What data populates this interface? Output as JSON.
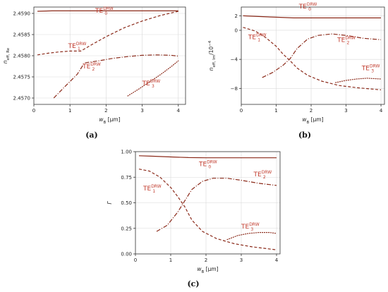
{
  "chart_data": [
    {
      "id": "a",
      "type": "line",
      "panel_label": "(a)",
      "xlabel": "w",
      "xlabel_sub": "B",
      "xlabel_unit": " [μm]",
      "ylabel": "n",
      "ylabel_sub": "eff, Re",
      "xlim": [
        0,
        4.2
      ],
      "ylim": [
        2.45685,
        2.45915
      ],
      "xticks": [
        0,
        1,
        2,
        3,
        4
      ],
      "xtick_labels": [
        "0",
        "1",
        "2",
        "3",
        "4"
      ],
      "yticks": [
        2.457,
        2.4575,
        2.458,
        2.4585,
        2.459
      ],
      "ytick_labels": [
        "2.4570",
        "2.4575",
        "2.4580",
        "2.4585",
        "2.4590"
      ],
      "series": [
        {
          "name": "TE0",
          "style": "solid",
          "x": [
            0.1,
            0.5,
            1.0,
            1.5,
            2.0,
            2.5,
            3.0,
            3.5,
            4.0
          ],
          "y": [
            2.45905,
            2.45906,
            2.45906,
            2.45906,
            2.45906,
            2.45906,
            2.45906,
            2.45906,
            2.45906
          ]
        },
        {
          "name": "TE1",
          "style": "dashed",
          "x": [
            0.1,
            0.4,
            0.7,
            1.0,
            1.3,
            1.6,
            2.0,
            2.5,
            3.0,
            3.5,
            4.0
          ],
          "y": [
            2.45802,
            2.45806,
            2.45809,
            2.45811,
            2.45811,
            2.45826,
            2.45845,
            2.45866,
            2.45882,
            2.45895,
            2.45905
          ]
        },
        {
          "name": "TE2",
          "style": "dashdot",
          "x": [
            0.55,
            0.8,
            1.0,
            1.2,
            1.4,
            1.8,
            2.2,
            2.6,
            3.0,
            3.4,
            3.8,
            4.0
          ],
          "y": [
            2.457,
            2.45722,
            2.45739,
            2.45756,
            2.45783,
            2.45788,
            2.45794,
            2.45798,
            2.45801,
            2.45802,
            2.45801,
            2.45799
          ]
        },
        {
          "name": "TE3",
          "style": "dotted",
          "x": [
            2.6,
            2.9,
            3.2,
            3.5,
            3.8,
            4.0
          ],
          "y": [
            2.45705,
            2.45721,
            2.45738,
            2.45755,
            2.45774,
            2.45788
          ]
        }
      ],
      "annotations": [
        {
          "base": "TE",
          "sub": "0",
          "sup": "DRW",
          "x": 1.7,
          "y": 2.45902
        },
        {
          "base": "TE",
          "sub": "1",
          "sup": "DRW",
          "x": 0.95,
          "y": 2.45818
        },
        {
          "base": "TE",
          "sub": "2",
          "sup": "DRW",
          "x": 1.35,
          "y": 2.4577
        },
        {
          "base": "TE",
          "sub": "3",
          "sup": "DRW",
          "x": 3.0,
          "y": 2.4573
        }
      ]
    },
    {
      "id": "b",
      "type": "line",
      "panel_label": "(b)",
      "xlabel": "w",
      "xlabel_sub": "B",
      "xlabel_unit": " [μm]",
      "ylabel": "n",
      "ylabel_sub": "eff, Im",
      "ylabel_suffix": "/10",
      "ylabel_sup": "−4",
      "xlim": [
        0,
        4.1
      ],
      "ylim": [
        -10.2,
        3.2
      ],
      "xticks": [
        0,
        1,
        2,
        3,
        4
      ],
      "xtick_labels": [
        "0",
        "1",
        "2",
        "3",
        "4"
      ],
      "yticks": [
        -8,
        -4,
        0,
        2
      ],
      "ytick_labels": [
        "−8",
        "−4",
        "0",
        "2"
      ],
      "series": [
        {
          "name": "TE0",
          "style": "solid",
          "x": [
            0.05,
            0.5,
            1.0,
            1.5,
            2.0,
            2.5,
            3.0,
            3.5,
            4.0
          ],
          "y": [
            2.0,
            1.9,
            1.8,
            1.7,
            1.7,
            1.7,
            1.7,
            1.7,
            1.7
          ]
        },
        {
          "name": "TE1",
          "style": "dashed",
          "x": [
            0.05,
            0.4,
            0.7,
            1.0,
            1.2,
            1.4,
            1.6,
            1.9,
            2.3,
            2.8,
            3.3,
            4.0
          ],
          "y": [
            0.4,
            -0.1,
            -1.0,
            -2.2,
            -3.3,
            -4.2,
            -5.2,
            -6.2,
            -7.0,
            -7.6,
            -7.9,
            -8.2
          ]
        },
        {
          "name": "TE2",
          "style": "dashdot",
          "x": [
            0.6,
            0.9,
            1.2,
            1.4,
            1.6,
            1.9,
            2.2,
            2.6,
            3.0,
            3.5,
            4.0
          ],
          "y": [
            -6.5,
            -5.8,
            -4.8,
            -3.9,
            -2.5,
            -1.2,
            -0.7,
            -0.5,
            -0.7,
            -1.1,
            -1.3
          ]
        },
        {
          "name": "TE3",
          "style": "dotted",
          "x": [
            2.7,
            3.0,
            3.3,
            3.6,
            4.0
          ],
          "y": [
            -7.2,
            -6.9,
            -6.7,
            -6.6,
            -6.7
          ]
        }
      ],
      "annotations": [
        {
          "base": "TE",
          "sub": "0",
          "sup": "DRW",
          "x": 1.65,
          "y": 3.0
        },
        {
          "base": "TE",
          "sub": "1",
          "sup": "DRW",
          "x": 0.2,
          "y": -1.2
        },
        {
          "base": "TE",
          "sub": "2",
          "sup": "DRW",
          "x": 2.75,
          "y": -1.6
        },
        {
          "base": "TE",
          "sub": "3",
          "sup": "DRW",
          "x": 3.45,
          "y": -5.5
        }
      ]
    },
    {
      "id": "c",
      "type": "line",
      "panel_label": "(c)",
      "xlabel": "w",
      "xlabel_sub": "B",
      "xlabel_unit": " [μm]",
      "ylabel": "Γ",
      "xlim": [
        0,
        4.1
      ],
      "ylim": [
        0,
        1.0
      ],
      "xticks": [
        0,
        1,
        2,
        3,
        4
      ],
      "xtick_labels": [
        "0",
        "1",
        "2",
        "3",
        "4"
      ],
      "yticks": [
        0.0,
        0.25,
        0.5,
        0.75,
        1.0
      ],
      "ytick_labels": [
        "0.00",
        "0.25",
        "0.50",
        "0.75",
        "1.00"
      ],
      "series": [
        {
          "name": "TE0",
          "style": "solid",
          "x": [
            0.1,
            0.5,
            1.0,
            1.5,
            2.0,
            2.5,
            3.0,
            3.5,
            4.0
          ],
          "y": [
            0.96,
            0.955,
            0.948,
            0.942,
            0.94,
            0.94,
            0.94,
            0.94,
            0.94
          ]
        },
        {
          "name": "TE1",
          "style": "dashed",
          "x": [
            0.1,
            0.4,
            0.7,
            1.0,
            1.2,
            1.4,
            1.6,
            1.9,
            2.3,
            2.8,
            3.3,
            4.0
          ],
          "y": [
            0.83,
            0.81,
            0.75,
            0.65,
            0.56,
            0.46,
            0.33,
            0.22,
            0.15,
            0.1,
            0.07,
            0.04
          ]
        },
        {
          "name": "TE2",
          "style": "dashdot",
          "x": [
            0.6,
            0.9,
            1.2,
            1.4,
            1.6,
            1.9,
            2.2,
            2.6,
            3.0,
            3.5,
            4.0
          ],
          "y": [
            0.22,
            0.28,
            0.41,
            0.52,
            0.63,
            0.71,
            0.74,
            0.74,
            0.72,
            0.69,
            0.67
          ]
        },
        {
          "name": "TE3",
          "style": "dotted",
          "x": [
            2.6,
            2.9,
            3.2,
            3.5,
            3.8,
            4.0
          ],
          "y": [
            0.14,
            0.18,
            0.2,
            0.21,
            0.21,
            0.2
          ]
        }
      ],
      "annotations": [
        {
          "base": "TE",
          "sub": "0",
          "sup": "DRW",
          "x": 1.8,
          "y": 0.86
        },
        {
          "base": "TE",
          "sub": "1",
          "sup": "DRW",
          "x": 0.22,
          "y": 0.62
        },
        {
          "base": "TE",
          "sub": "2",
          "sup": "DRW",
          "x": 3.35,
          "y": 0.76
        },
        {
          "base": "TE",
          "sub": "3",
          "sup": "DRW",
          "x": 3.0,
          "y": 0.25
        }
      ]
    }
  ],
  "colors": {
    "curve": "#8b2a1a",
    "label": "#c0392b",
    "axis": "#333333",
    "grid": "#d9d9d9"
  }
}
